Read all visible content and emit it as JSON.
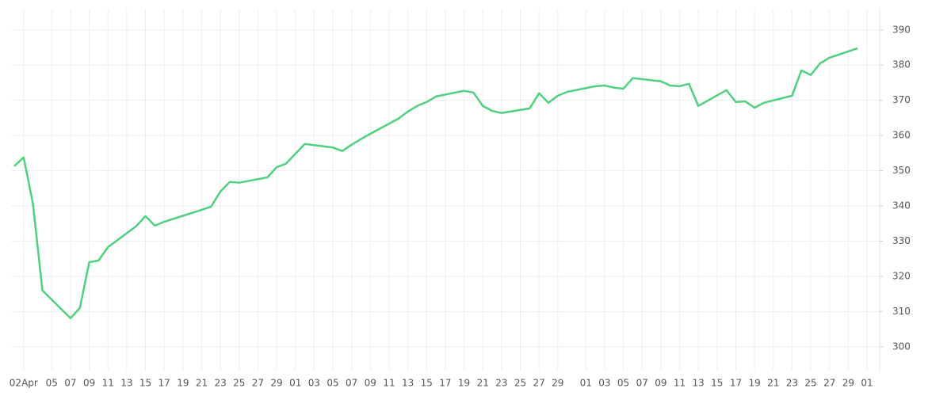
{
  "chart_data": {
    "type": "line",
    "x": [
      "Apr 01",
      "Apr 02",
      "Apr 03",
      "Apr 04",
      "Apr 07",
      "Apr 08",
      "Apr 09",
      "Apr 10",
      "Apr 11",
      "Apr 14",
      "Apr 15",
      "Apr 16",
      "Apr 17",
      "Apr 21",
      "Apr 22",
      "Apr 23",
      "Apr 24",
      "Apr 25",
      "Apr 28",
      "Apr 29",
      "Apr 30",
      "May 01",
      "May 02",
      "May 05",
      "May 06",
      "May 07",
      "May 08",
      "May 09",
      "May 12",
      "May 13",
      "May 14",
      "May 15",
      "May 16",
      "May 19",
      "May 20",
      "May 21",
      "May 22",
      "May 23",
      "May 26",
      "May 27",
      "May 28",
      "May 29",
      "May 30",
      "Jun 02",
      "Jun 03",
      "Jun 04",
      "Jun 05",
      "Jun 06",
      "Jun 09",
      "Jun 10",
      "Jun 11",
      "Jun 12",
      "Jun 13",
      "Jun 16",
      "Jun 17",
      "Jun 18",
      "Jun 19",
      "Jun 20",
      "Jun 23",
      "Jun 24",
      "Jun 25",
      "Jun 26",
      "Jun 27",
      "Jun 30"
    ],
    "series": [
      {
        "color": "#4fd17f",
        "values": [
          351.3,
          353.8,
          340.5,
          316,
          308.1,
          311,
          324,
          324.5,
          328.3,
          334.2,
          337.1,
          334.4,
          335.5,
          338.9,
          339.8,
          344.1,
          346.8,
          346.6,
          348.1,
          351,
          352,
          354.8,
          357.6,
          356.6,
          355.6,
          357.4,
          359,
          360.5,
          364.8,
          366.8,
          368.4,
          369.5,
          371.1,
          372.7,
          372.2,
          368.4,
          367,
          366.4,
          367.7,
          372,
          369.3,
          371.3,
          372.4,
          374,
          374.2,
          373.6,
          373.3,
          376.3,
          375.4,
          374.2,
          374,
          374.7,
          368.4,
          372.9,
          369.5,
          369.7,
          367.9,
          369.3,
          371.3,
          378.5,
          377.2,
          380.5,
          382.1,
          384.8
        ]
      }
    ],
    "xlim": [
      "Apr 01",
      "Jul 01"
    ],
    "xticks": [
      {
        "value": "Apr 02",
        "label": "02Apr"
      },
      {
        "value": "Apr 05",
        "label": "05"
      },
      {
        "value": "Apr 07",
        "label": "07"
      },
      {
        "value": "Apr 09",
        "label": "09"
      },
      {
        "value": "Apr 11",
        "label": "11"
      },
      {
        "value": "Apr 13",
        "label": "13"
      },
      {
        "value": "Apr 15",
        "label": "15"
      },
      {
        "value": "Apr 17",
        "label": "17"
      },
      {
        "value": "Apr 19",
        "label": "19"
      },
      {
        "value": "Apr 21",
        "label": "21"
      },
      {
        "value": "Apr 23",
        "label": "23"
      },
      {
        "value": "Apr 25",
        "label": "25"
      },
      {
        "value": "Apr 27",
        "label": "27"
      },
      {
        "value": "Apr 29",
        "label": "29"
      },
      {
        "value": "May 01",
        "label": "01"
      },
      {
        "value": "May 03",
        "label": "03"
      },
      {
        "value": "May 05",
        "label": "05"
      },
      {
        "value": "May 07",
        "label": "07"
      },
      {
        "value": "May 09",
        "label": "09"
      },
      {
        "value": "May 11",
        "label": "11"
      },
      {
        "value": "May 13",
        "label": "13"
      },
      {
        "value": "May 15",
        "label": "15"
      },
      {
        "value": "May 17",
        "label": "17"
      },
      {
        "value": "May 19",
        "label": "19"
      },
      {
        "value": "May 21",
        "label": "21"
      },
      {
        "value": "May 23",
        "label": "23"
      },
      {
        "value": "May 25",
        "label": "25"
      },
      {
        "value": "May 27",
        "label": "27"
      },
      {
        "value": "May 29",
        "label": "29"
      },
      {
        "value": "Jun 01",
        "label": "01"
      },
      {
        "value": "Jun 03",
        "label": "03"
      },
      {
        "value": "Jun 05",
        "label": "05"
      },
      {
        "value": "Jun 07",
        "label": "07"
      },
      {
        "value": "Jun 09",
        "label": "09"
      },
      {
        "value": "Jun 11",
        "label": "11"
      },
      {
        "value": "Jun 13",
        "label": "13"
      },
      {
        "value": "Jun 15",
        "label": "15"
      },
      {
        "value": "Jun 17",
        "label": "17"
      },
      {
        "value": "Jun 19",
        "label": "19"
      },
      {
        "value": "Jun 21",
        "label": "21"
      },
      {
        "value": "Jun 23",
        "label": "23"
      },
      {
        "value": "Jun 25",
        "label": "25"
      },
      {
        "value": "Jun 27",
        "label": "27"
      },
      {
        "value": "Jun 29",
        "label": "29"
      },
      {
        "value": "Jul 01",
        "label": "01"
      }
    ],
    "ylim": [
      293.2,
      395.8
    ],
    "yticks": [
      300,
      310,
      320,
      330,
      340,
      350,
      360,
      370,
      380,
      390
    ],
    "grid": true
  }
}
